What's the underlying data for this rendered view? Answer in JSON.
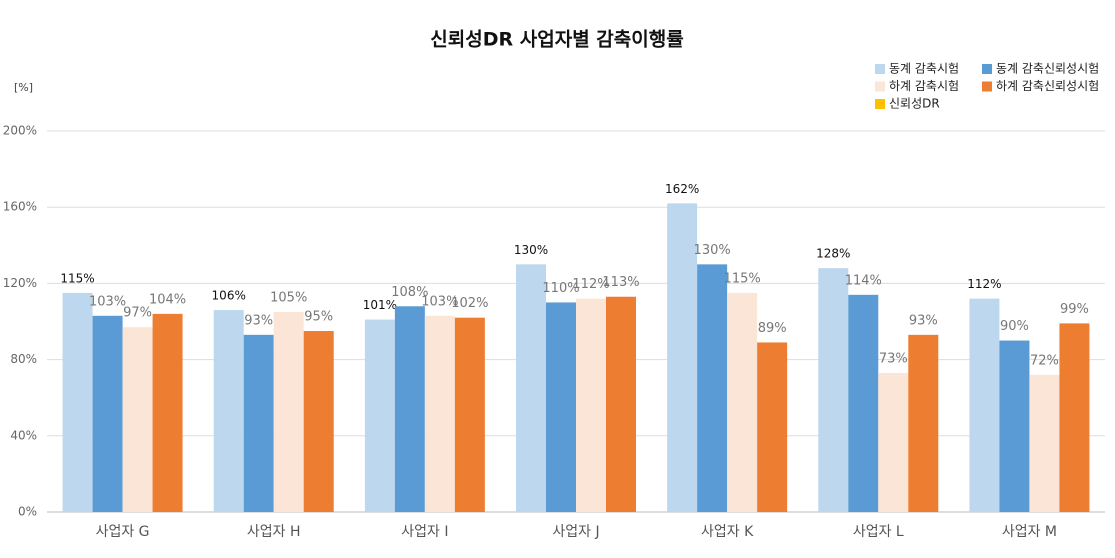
{
  "chart_data": {
    "type": "bar",
    "title": "신뢰성DR 사업자별 감축이행률",
    "y_unit": "[%]",
    "categories": [
      "사업자 G",
      "사업자 H",
      "사업자 I",
      "사업자 J",
      "사업자 K",
      "사업자 L",
      "사업자 M"
    ],
    "series": [
      {
        "name": "동계 감축시험",
        "color": "#bdd7ee",
        "values": [
          115,
          106,
          101,
          130,
          162,
          128,
          112
        ],
        "value_labels": [
          "115%",
          "106%",
          "101%",
          "130%",
          "162%",
          "128%",
          "112%"
        ]
      },
      {
        "name": "동계 감축신뢰성시험",
        "color": "#5b9bd5",
        "values": [
          103,
          93,
          108,
          110,
          130,
          114,
          90
        ],
        "value_labels": [
          "103%",
          "93%",
          "108%",
          "110%",
          "130%",
          "114%",
          "90%"
        ]
      },
      {
        "name": "하계 감축시험",
        "color": "#fbe5d6",
        "values": [
          97,
          105,
          103,
          112,
          115,
          73,
          72
        ],
        "value_labels": [
          "97%",
          "105%",
          "103%",
          "112%",
          "115%",
          "73%",
          "72%"
        ]
      },
      {
        "name": "하계 감축신뢰성시험",
        "color": "#ed7d31",
        "values": [
          104,
          95,
          102,
          113,
          89,
          93,
          99
        ],
        "value_labels": [
          "104%",
          "95%",
          "102%",
          "113%",
          "89%",
          "93%",
          "99%"
        ]
      },
      {
        "name": "신뢰성DR",
        "color": "#ffc000",
        "values": [
          null,
          null,
          null,
          null,
          null,
          null,
          null
        ]
      }
    ],
    "ylim": [
      0,
      200
    ],
    "yticks": [
      {
        "value": 0,
        "label": "0%"
      },
      {
        "value": 40,
        "label": "40%"
      },
      {
        "value": 80,
        "label": "80%"
      },
      {
        "value": 120,
        "label": "120%"
      },
      {
        "value": 160,
        "label": "160%"
      },
      {
        "value": 200,
        "label": "200%"
      }
    ],
    "grid": true,
    "legend": "top-right"
  }
}
